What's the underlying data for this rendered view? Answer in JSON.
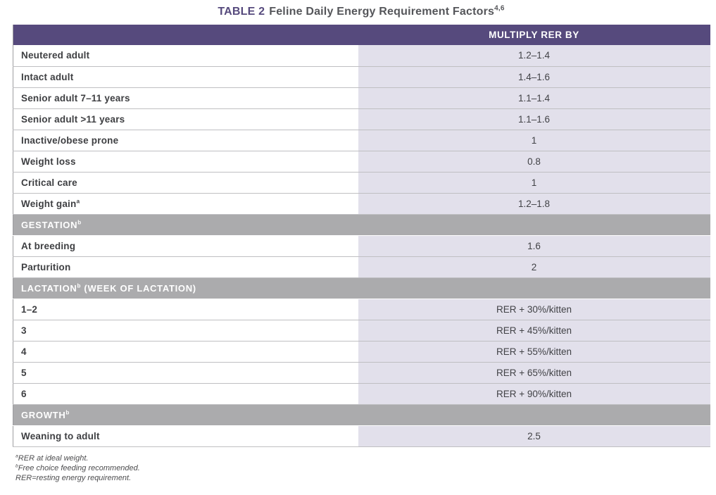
{
  "title": {
    "prefix": "TABLE 2",
    "text": "Feline Daily Energy Requirement Factors",
    "sup": "4,6"
  },
  "colors": {
    "header_purple": "#564a7d",
    "section_band_gray": "#ababad",
    "value_column_lavender": "#e2e0eb"
  },
  "table": {
    "value_column_header": "MULTIPLY RER BY",
    "rows": [
      {
        "kind": "data",
        "label": "Neutered adult",
        "sup": null,
        "value": "1.2–1.4"
      },
      {
        "kind": "data",
        "label": "Intact adult",
        "sup": null,
        "value": "1.4–1.6"
      },
      {
        "kind": "data",
        "label": "Senior adult 7–11 years",
        "sup": null,
        "value": "1.1–1.4"
      },
      {
        "kind": "data",
        "label": "Senior adult >11 years",
        "sup": null,
        "value": "1.1–1.6"
      },
      {
        "kind": "data",
        "label": "Inactive/obese prone",
        "sup": null,
        "value": "1"
      },
      {
        "kind": "data",
        "label": "Weight loss",
        "sup": null,
        "value": "0.8"
      },
      {
        "kind": "data",
        "label": "Critical care",
        "sup": null,
        "value": "1"
      },
      {
        "kind": "data",
        "label": "Weight gain",
        "sup": "a",
        "value": "1.2–1.8"
      },
      {
        "kind": "band",
        "label": "GESTATION",
        "sup": "b",
        "suffix": null
      },
      {
        "kind": "data",
        "label": "At breeding",
        "sup": null,
        "value": "1.6"
      },
      {
        "kind": "data",
        "label": "Parturition",
        "sup": null,
        "value": "2"
      },
      {
        "kind": "band",
        "label": "LACTATION",
        "sup": "b",
        "suffix": " (WEEK OF LACTATION)"
      },
      {
        "kind": "data",
        "label": "1–2",
        "sup": null,
        "value": "RER + 30%/kitten"
      },
      {
        "kind": "data",
        "label": "3",
        "sup": null,
        "value": "RER + 45%/kitten"
      },
      {
        "kind": "data",
        "label": "4",
        "sup": null,
        "value": "RER + 55%/kitten"
      },
      {
        "kind": "data",
        "label": "5",
        "sup": null,
        "value": "RER + 65%/kitten"
      },
      {
        "kind": "data",
        "label": "6",
        "sup": null,
        "value": "RER + 90%/kitten"
      },
      {
        "kind": "band",
        "label": "GROWTH",
        "sup": "b",
        "suffix": null
      },
      {
        "kind": "data",
        "label": "Weaning to adult",
        "sup": null,
        "value": "2.5"
      }
    ]
  },
  "footnotes": [
    {
      "sup": "a",
      "text": "RER at ideal weight."
    },
    {
      "sup": "b",
      "text": "Free choice feeding recommended."
    },
    {
      "sup": "",
      "text": "RER=resting energy requirement."
    }
  ]
}
